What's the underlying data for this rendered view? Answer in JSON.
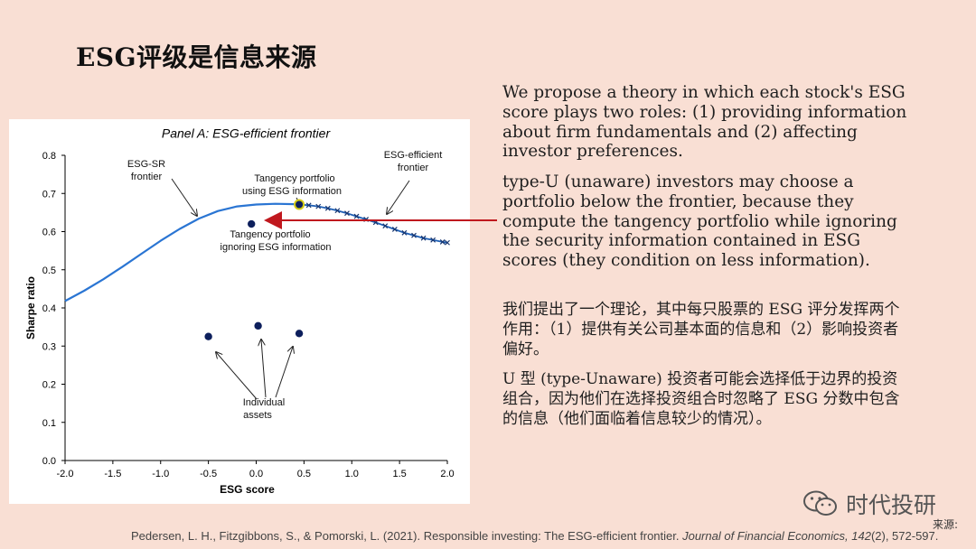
{
  "title": "ESG评级是信息来源",
  "chart_data": {
    "type": "line",
    "panel_title": "Panel A: ESG-efficient frontier",
    "xlabel": "ESG score",
    "ylabel": "Sharpe ratio",
    "xlim": [
      -2.0,
      2.0
    ],
    "ylim": [
      0.0,
      0.8
    ],
    "xticks": [
      "-2.0",
      "-1.5",
      "-1.0",
      "-0.5",
      "0.0",
      "0.5",
      "1.0",
      "1.5",
      "2.0"
    ],
    "yticks": [
      "0.0",
      "0.1",
      "0.2",
      "0.3",
      "0.4",
      "0.5",
      "0.6",
      "0.7",
      "0.8"
    ],
    "series": [
      {
        "name": "ESG-SR frontier",
        "color": "#2a75d3",
        "x": [
          -2.0,
          -1.8,
          -1.6,
          -1.4,
          -1.2,
          -1.0,
          -0.8,
          -0.6,
          -0.4,
          -0.2,
          0.0,
          0.2,
          0.4,
          0.45
        ],
        "y": [
          0.418,
          0.445,
          0.475,
          0.508,
          0.542,
          0.576,
          0.607,
          0.634,
          0.654,
          0.666,
          0.671,
          0.673,
          0.672,
          0.671
        ]
      },
      {
        "name": "ESG-efficient frontier",
        "color": "#1f5fb4",
        "marker": "x",
        "x": [
          0.45,
          0.55,
          0.65,
          0.75,
          0.85,
          0.95,
          1.05,
          1.15,
          1.25,
          1.35,
          1.45,
          1.55,
          1.65,
          1.75,
          1.85,
          1.95,
          2.0
        ],
        "y": [
          0.671,
          0.669,
          0.666,
          0.661,
          0.655,
          0.648,
          0.64,
          0.632,
          0.624,
          0.615,
          0.606,
          0.597,
          0.59,
          0.583,
          0.578,
          0.573,
          0.571
        ]
      }
    ],
    "points": [
      {
        "label": "Tangency portfolio using ESG information",
        "x": 0.45,
        "y": 0.671
      },
      {
        "label": "Tangency portfolio ignoring ESG information",
        "x": -0.05,
        "y": 0.62
      },
      {
        "label": "Individual assets",
        "x": -0.5,
        "y": 0.325
      },
      {
        "label": "Individual assets",
        "x": 0.02,
        "y": 0.353
      },
      {
        "label": "Individual assets",
        "x": 0.45,
        "y": 0.333
      }
    ],
    "annotations": {
      "esg_sr": [
        "ESG-SR",
        "frontier"
      ],
      "esg_eff": [
        "ESG-efficient",
        "frontier"
      ],
      "tan_using": [
        "Tangency portfolio",
        "using ESG information"
      ],
      "tan_ignoring": [
        "Tangency portfolio",
        "ignoring ESG information"
      ],
      "individual": [
        "Individual",
        "assets"
      ]
    },
    "grid": false,
    "legend": "none"
  },
  "text": {
    "p1": "We propose a theory in which each stock's ESG score plays two roles: (1) providing information about firm fundamentals and (2) affecting investor preferences.",
    "p2": "type-U (unaware) investors may choose a portfolio below the frontier, because they compute the tangency portfolio while ignoring the security information contained in ESG scores (they condition on less information).",
    "p3": "我们提出了一个理论，其中每只股票的 ESG 评分发挥两个作用：（1）提供有关公司基本面的信息和（2）影响投资者偏好。",
    "p4": "U 型 (type-Unaware) 投资者可能会选择低于边界的投资组合，因为他们在选择投资组合时忽略了 ESG 分数中包含的信息（他们面临着信息较少的情况）。"
  },
  "citation": {
    "authors": "Pedersen, L. H., Fitzgibbons, S., & Pomorski, L. (2021). Responsible investing: The ESG-efficient frontier. ",
    "journal": "Journal of Financial Economics",
    "vol": ", 142",
    "rest": "(2), 572-597."
  },
  "watermark": "时代投研",
  "source_label": "来源:",
  "colors": {
    "background": "#f9dfd4",
    "arrow": "#c0181e",
    "point": "#0d1f5c"
  }
}
